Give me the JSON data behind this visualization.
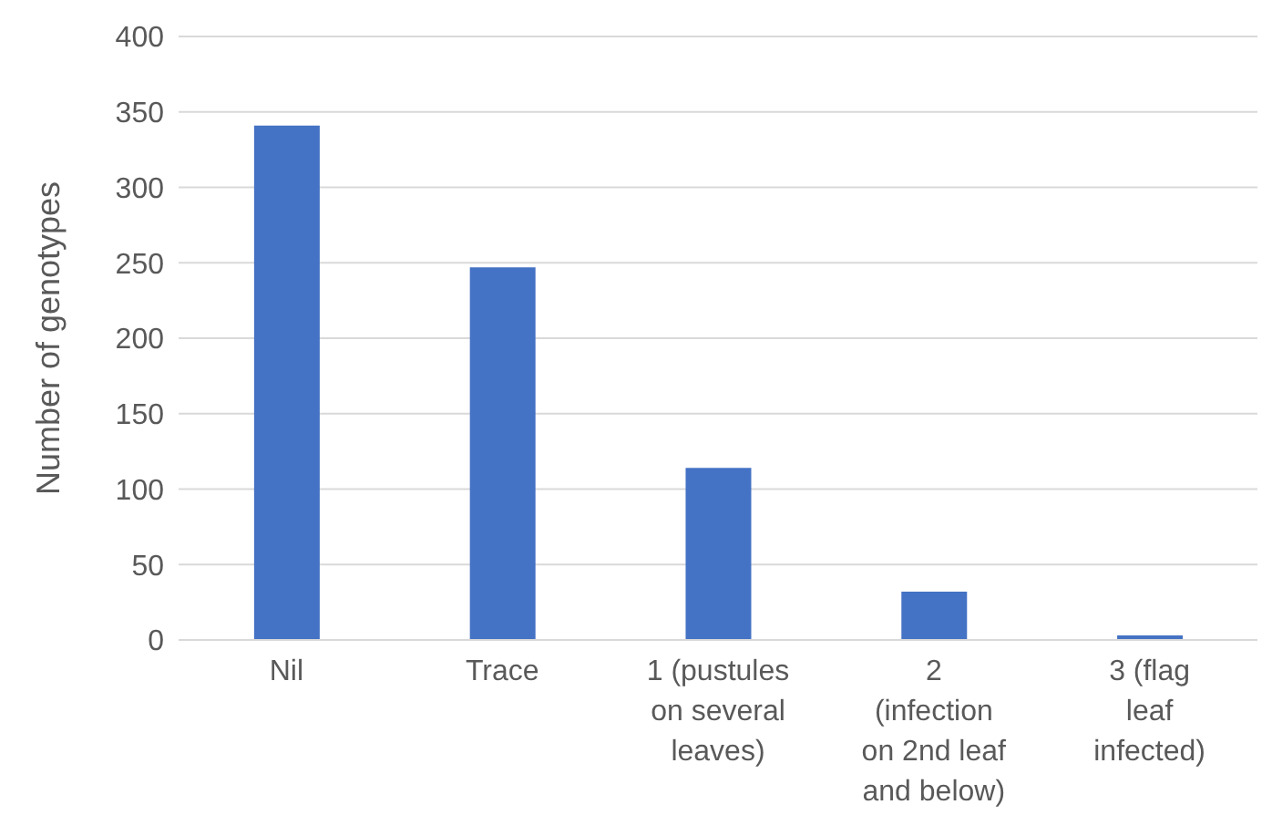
{
  "chart_data": {
    "type": "bar",
    "ylabel": "Number of genotypes",
    "categories": [
      "Nil",
      "Trace",
      "1 (pustules on several leaves)",
      "2 (infection on 2nd leaf and below)",
      "3 (flag leaf infected)"
    ],
    "values": [
      341,
      247,
      114,
      32,
      3
    ],
    "color": "#4472c4",
    "ylim": [
      0,
      400
    ],
    "yticks": [
      0,
      50,
      100,
      150,
      200,
      250,
      300,
      350,
      400
    ],
    "grid": "y",
    "legend": false
  }
}
